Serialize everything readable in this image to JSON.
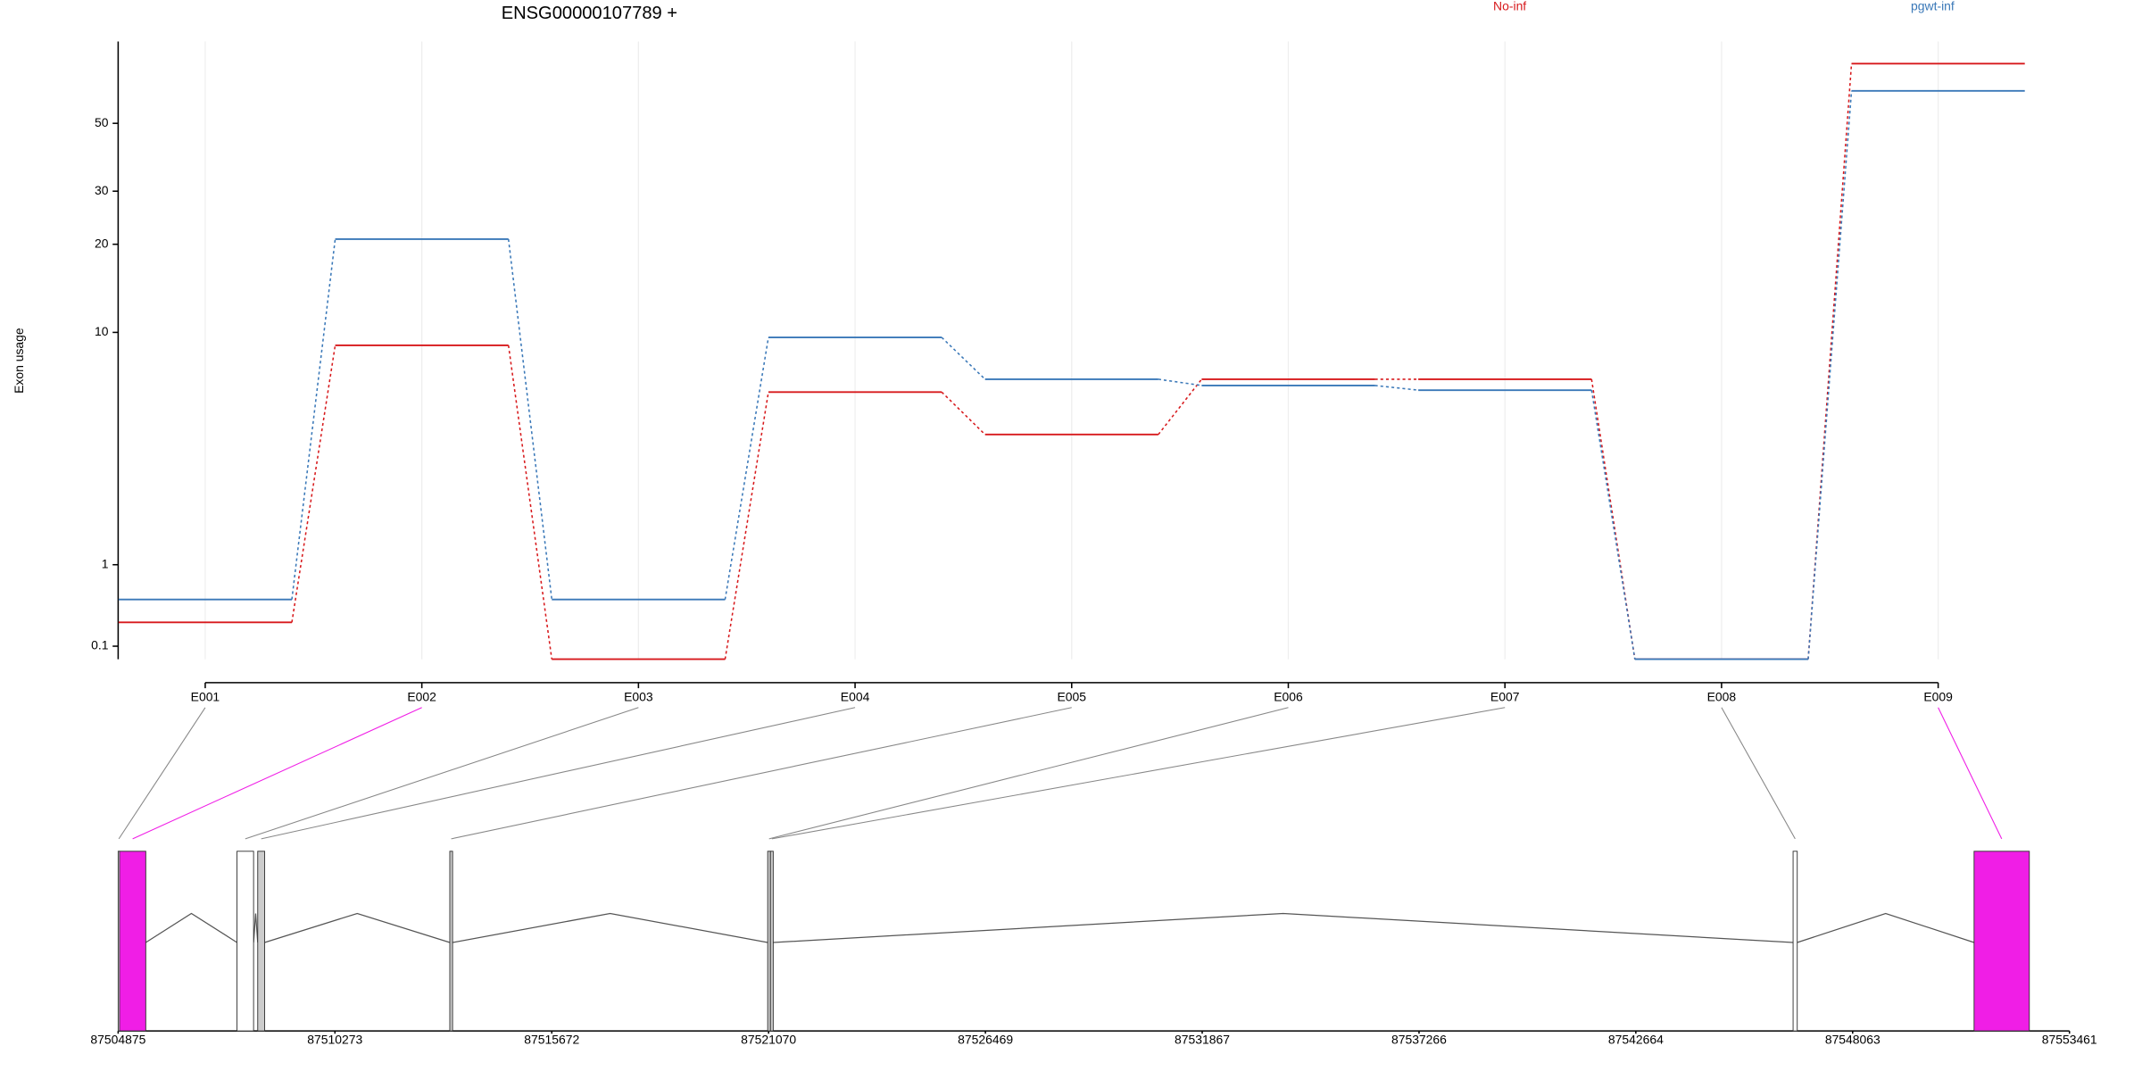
{
  "chart_data": {
    "type": "exon_usage",
    "title": "ENSG00000107789 +",
    "y_label": "Exon usage",
    "yscale": "log1p",
    "grid": true,
    "categories": [
      "E001",
      "E002",
      "E003",
      "E004",
      "E005",
      "E006",
      "E007",
      "E008",
      "E009"
    ],
    "series": [
      {
        "name": "No-inf",
        "color": "#d7191c",
        "values": [
          0.31,
          9.0,
          0,
          6.1,
          4.2,
          6.8,
          6.8,
          0,
          78
        ]
      },
      {
        "name": "pgwt-inf",
        "color": "#3a78b8",
        "values": [
          0.55,
          20.8,
          0.55,
          9.6,
          6.8,
          6.45,
          6.2,
          0,
          63.7
        ]
      }
    ],
    "ylim": [
      0,
      92
    ],
    "yticks": [
      0.1,
      1,
      10,
      20,
      30,
      50
    ],
    "gene_model": {
      "xlim": [
        87504875,
        87553461
      ],
      "xticks": [
        87504875,
        87510273,
        87515672,
        87521070,
        87526469,
        87531867,
        87537266,
        87542664,
        87548063,
        87553461
      ],
      "exons": [
        {
          "start": 87504875,
          "end": 87504909,
          "color": "#ffffff"
        },
        {
          "start": 87504909,
          "end": 87505563,
          "color": "#f01ee6"
        },
        {
          "start": 87507834,
          "end": 87508247,
          "color": "#ffffff"
        },
        {
          "start": 87508350,
          "end": 87508523,
          "color": "#cccccc"
        },
        {
          "start": 87513133,
          "end": 87513202,
          "color": "#cccccc"
        },
        {
          "start": 87521048,
          "end": 87521117,
          "color": "#cccccc"
        },
        {
          "start": 87521117,
          "end": 87521186,
          "color": "#cccccc"
        },
        {
          "start": 87546580,
          "end": 87546683,
          "color": "#ffffff"
        },
        {
          "start": 87551086,
          "end": 87552462,
          "color": "#f01ee6"
        }
      ]
    }
  }
}
